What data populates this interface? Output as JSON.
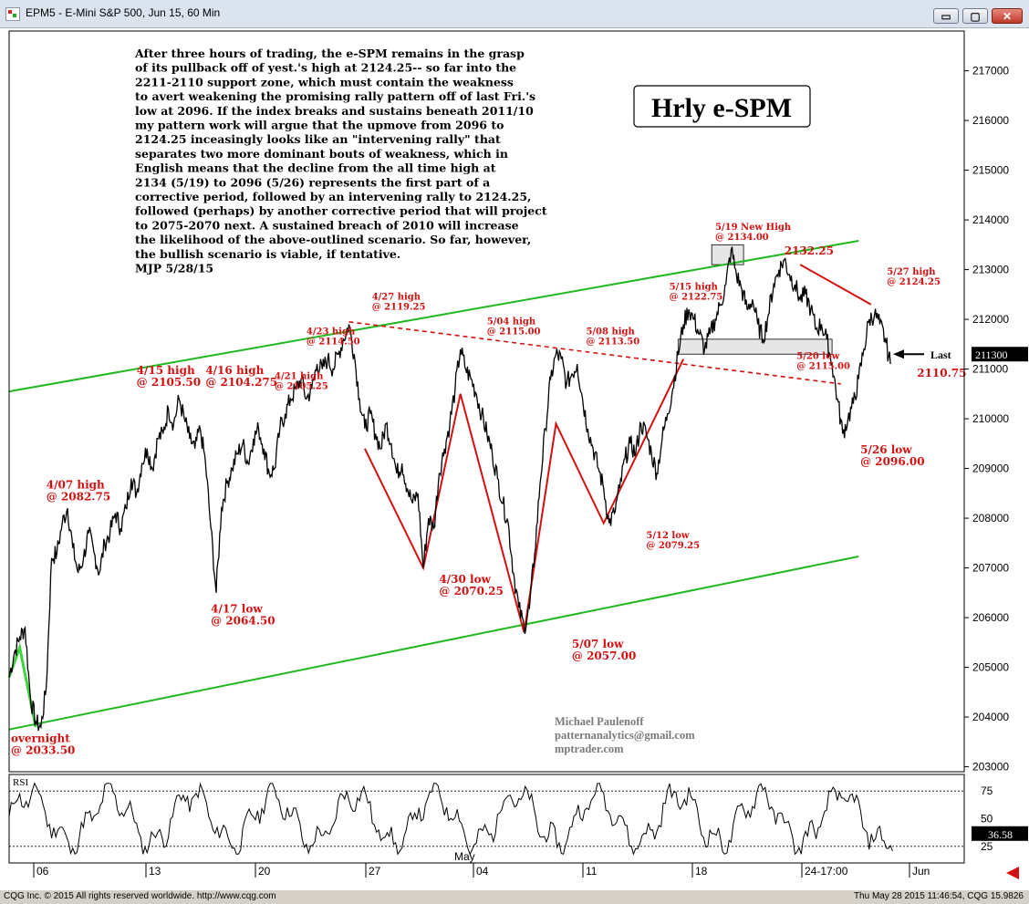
{
  "window": {
    "title": "EPM5 - E-Mini S&P 500, Jun 15, 60 Min",
    "controls": {
      "minimize": "▭",
      "maximize": "▢",
      "close": "✕"
    }
  },
  "status": {
    "left": "CQG Inc. © 2015 All rights reserved worldwide. http://www.cqg.com",
    "right": "Thu May 28 2015 11:46:54, CQG 15.9826"
  },
  "colors": {
    "price": "#000000",
    "channel": "#1fb81f",
    "annotation": "#d41010",
    "background": "#ffffff"
  },
  "chart_data": {
    "type": "line",
    "title": "Hrly e-SPM",
    "instrument": "EPM5 - E-Mini S&P 500, Jun 15, 60 Min",
    "ylim": [
      2029,
      2178
    ],
    "yticks": [
      2030,
      2040,
      2050,
      2060,
      2070,
      2080,
      2090,
      2100,
      2110,
      2120,
      2130,
      2140,
      2150,
      2160,
      2170
    ],
    "ytick_labels": [
      "203000",
      "204000",
      "205000",
      "206000",
      "207000",
      "208000",
      "209000",
      "210000",
      "211000",
      "212000",
      "213000",
      "214000",
      "215000",
      "216000",
      "217000"
    ],
    "xtick_labels": [
      "06",
      "13",
      "20",
      "27",
      "04",
      "11",
      "18",
      "24-17:00",
      "Jun"
    ],
    "month_labels": [
      "May"
    ],
    "series": [
      {
        "values": [
          [
            0,
            2048
          ],
          [
            3,
            2053
          ],
          [
            6,
            2056
          ],
          [
            9,
            2058
          ],
          [
            12,
            2044
          ],
          [
            15,
            2039
          ],
          [
            18,
            2038
          ],
          [
            21,
            2046
          ],
          [
            24,
            2072
          ],
          [
            27,
            2073
          ],
          [
            30,
            2079
          ],
          [
            33,
            2082
          ],
          [
            36,
            2074
          ],
          [
            39,
            2069
          ],
          [
            42,
            2072
          ],
          [
            45,
            2077
          ],
          [
            48,
            2073
          ],
          [
            51,
            2069
          ],
          [
            54,
            2075
          ],
          [
            57,
            2077
          ],
          [
            60,
            2081
          ],
          [
            63,
            2078
          ],
          [
            66,
            2082
          ],
          [
            69,
            2088
          ],
          [
            72,
            2085
          ],
          [
            75,
            2091
          ],
          [
            78,
            2094
          ],
          [
            81,
            2090
          ],
          [
            84,
            2096
          ],
          [
            87,
            2097
          ],
          [
            90,
            2102
          ],
          [
            93,
            2099
          ],
          [
            96,
            2104
          ],
          [
            99,
            2100
          ],
          [
            102,
            2096
          ],
          [
            105,
            2094
          ],
          [
            108,
            2098
          ],
          [
            111,
            2091
          ],
          [
            114,
            2078
          ],
          [
            117,
            2065
          ],
          [
            120,
            2082
          ],
          [
            123,
            2087
          ],
          [
            126,
            2090
          ],
          [
            129,
            2093
          ],
          [
            132,
            2095
          ],
          [
            135,
            2091
          ],
          [
            138,
            2096
          ],
          [
            141,
            2098
          ],
          [
            144,
            2094
          ],
          [
            147,
            2089
          ],
          [
            150,
            2090
          ],
          [
            153,
            2098
          ],
          [
            156,
            2101
          ],
          [
            159,
            2104
          ],
          [
            162,
            2106
          ],
          [
            165,
            2108
          ],
          [
            168,
            2104
          ],
          [
            171,
            2106
          ],
          [
            174,
            2111
          ],
          [
            177,
            2110
          ],
          [
            180,
            2112
          ],
          [
            183,
            2110
          ],
          [
            186,
            2113
          ],
          [
            189,
            2116
          ],
          [
            192,
            2119
          ],
          [
            195,
            2113
          ],
          [
            198,
            2104
          ],
          [
            201,
            2098
          ],
          [
            204,
            2101
          ],
          [
            207,
            2097
          ],
          [
            210,
            2094
          ],
          [
            213,
            2099
          ],
          [
            216,
            2095
          ],
          [
            219,
            2089
          ],
          [
            222,
            2091
          ],
          [
            225,
            2086
          ],
          [
            228,
            2083
          ],
          [
            231,
            2085
          ],
          [
            234,
            2070
          ],
          [
            237,
            2080
          ],
          [
            240,
            2078
          ],
          [
            243,
            2089
          ],
          [
            246,
            2094
          ],
          [
            249,
            2099
          ],
          [
            252,
            2106
          ],
          [
            255,
            2114
          ],
          [
            258,
            2110
          ],
          [
            261,
            2108
          ],
          [
            264,
            2105
          ],
          [
            267,
            2101
          ],
          [
            270,
            2097
          ],
          [
            273,
            2093
          ],
          [
            276,
            2088
          ],
          [
            279,
            2083
          ],
          [
            282,
            2079
          ],
          [
            285,
            2069
          ],
          [
            288,
            2062
          ],
          [
            291,
            2058
          ],
          [
            294,
            2062
          ],
          [
            297,
            2073
          ],
          [
            300,
            2087
          ],
          [
            303,
            2098
          ],
          [
            306,
            2108
          ],
          [
            309,
            2113
          ],
          [
            312,
            2112
          ],
          [
            315,
            2107
          ],
          [
            318,
            2109
          ],
          [
            321,
            2111
          ],
          [
            324,
            2104
          ],
          [
            327,
            2098
          ],
          [
            330,
            2094
          ],
          [
            333,
            2090
          ],
          [
            336,
            2086
          ],
          [
            339,
            2079
          ],
          [
            342,
            2081
          ],
          [
            345,
            2086
          ],
          [
            348,
            2092
          ],
          [
            351,
            2095
          ],
          [
            354,
            2093
          ],
          [
            357,
            2099
          ],
          [
            360,
            2097
          ],
          [
            363,
            2093
          ],
          [
            366,
            2089
          ],
          [
            369,
            2096
          ],
          [
            372,
            2101
          ],
          [
            375,
            2106
          ],
          [
            378,
            2113
          ],
          [
            381,
            2119
          ],
          [
            384,
            2122
          ],
          [
            387,
            2120
          ],
          [
            390,
            2117
          ],
          [
            393,
            2114
          ],
          [
            396,
            2117
          ],
          [
            399,
            2120
          ],
          [
            402,
            2123
          ],
          [
            405,
            2127
          ],
          [
            408,
            2134
          ],
          [
            411,
            2129
          ],
          [
            414,
            2126
          ],
          [
            417,
            2122
          ],
          [
            420,
            2124
          ],
          [
            423,
            2119
          ],
          [
            426,
            2116
          ],
          [
            429,
            2121
          ],
          [
            432,
            2127
          ],
          [
            435,
            2130
          ],
          [
            438,
            2132
          ],
          [
            441,
            2129
          ],
          [
            444,
            2127
          ],
          [
            447,
            2124
          ],
          [
            450,
            2125
          ],
          [
            453,
            2122
          ],
          [
            456,
            2118
          ],
          [
            459,
            2119
          ],
          [
            462,
            2116
          ],
          [
            465,
            2111
          ],
          [
            468,
            2104
          ],
          [
            471,
            2097
          ],
          [
            474,
            2100
          ],
          [
            477,
            2103
          ],
          [
            480,
            2108
          ],
          [
            483,
            2114
          ],
          [
            486,
            2120
          ],
          [
            489,
            2121
          ],
          [
            492,
            2119
          ],
          [
            495,
            2116
          ],
          [
            498,
            2111
          ]
        ]
      }
    ],
    "upper_channel": [
      [
        0,
        2105.5
      ],
      [
        480,
        2135.8
      ]
    ],
    "lower_channel": [
      [
        0,
        2037.5
      ],
      [
        480,
        2072.3
      ]
    ],
    "red_resistance_dashed": [
      [
        192,
        2119.5
      ],
      [
        470,
        2107
      ]
    ],
    "red_downtrend": [
      [
        447,
        2131
      ],
      [
        487,
        2123
      ]
    ],
    "red_path_w": [
      [
        201,
        2094
      ],
      [
        234,
        2070
      ],
      [
        255,
        2105
      ],
      [
        291,
        2057
      ],
      [
        309,
        2099
      ],
      [
        336,
        2079
      ],
      [
        381,
        2112
      ]
    ],
    "green_path": [
      [
        0,
        2048
      ],
      [
        6,
        2054
      ],
      [
        15,
        2038
      ]
    ],
    "zones": [
      {
        "x0": 378,
        "x1": 465,
        "y0": 2113,
        "y1": 2116
      },
      {
        "x0": 397,
        "x1": 415,
        "y0": 2131,
        "y1": 2135
      }
    ],
    "annotations": [
      {
        "lines": [
          "overnight",
          "@ 2033.50"
        ],
        "x": 1,
        "y": 2035,
        "size": 12
      },
      {
        "lines": [
          "4/07 high",
          "@ 2082.75"
        ],
        "x": 21,
        "y": 2086,
        "size": 12
      },
      {
        "lines": [
          "4/15 high",
          "@ 2105.50"
        ],
        "x": 72,
        "y": 2109,
        "size": 12
      },
      {
        "lines": [
          "4/16 high",
          "@ 2104.275"
        ],
        "x": 111,
        "y": 2109,
        "size": 12
      },
      {
        "lines": [
          "4/17 low",
          "@ 2064.50"
        ],
        "x": 114,
        "y": 2061,
        "size": 12
      },
      {
        "lines": [
          "4/21 high",
          "@ 2105.25"
        ],
        "x": 150,
        "y": 2108,
        "size": 10
      },
      {
        "lines": [
          "4/23 high",
          "@ 2114.50"
        ],
        "x": 168,
        "y": 2117,
        "size": 10
      },
      {
        "lines": [
          "4/27 high",
          "@ 2119.25"
        ],
        "x": 205,
        "y": 2124,
        "size": 10
      },
      {
        "lines": [
          "4/30 low",
          "@ 2070.25"
        ],
        "x": 243,
        "y": 2067,
        "size": 12
      },
      {
        "lines": [
          "5/04 high",
          "@ 2115.00"
        ],
        "x": 270,
        "y": 2119,
        "size": 10
      },
      {
        "lines": [
          "5/07 low",
          "@ 2057.00"
        ],
        "x": 318,
        "y": 2054,
        "size": 12
      },
      {
        "lines": [
          "5/08 high",
          "@ 2113.50"
        ],
        "x": 326,
        "y": 2117,
        "size": 10
      },
      {
        "lines": [
          "5/12 low",
          "@ 2079.25"
        ],
        "x": 360,
        "y": 2076,
        "size": 10
      },
      {
        "lines": [
          "5/15 high",
          "@ 2122.75"
        ],
        "x": 373,
        "y": 2126,
        "size": 10
      },
      {
        "lines": [
          "5/19 New High",
          "@ 2134.00"
        ],
        "x": 399,
        "y": 2138,
        "size": 10
      },
      {
        "lines": [
          "2132.25"
        ],
        "x": 438,
        "y": 2133,
        "size": 12
      },
      {
        "lines": [
          "5/20 low",
          "@ 2115.00"
        ],
        "x": 445,
        "y": 2112,
        "size": 10
      },
      {
        "lines": [
          "5/27 high",
          "@ 2124.25"
        ],
        "x": 496,
        "y": 2129,
        "size": 10
      },
      {
        "lines": [
          "5/26 low",
          "@ 2096.00"
        ],
        "x": 481,
        "y": 2093,
        "size": 12
      },
      {
        "lines": [
          "2110.75"
        ],
        "x": 513,
        "y": 2108.5,
        "size": 12
      }
    ],
    "rsi": {
      "label": "RSI",
      "levels": [
        75,
        50,
        25
      ],
      "level_labels": [
        "75",
        "50",
        "25"
      ],
      "last": "36.58",
      "ylim": [
        10,
        90
      ]
    },
    "last_price": {
      "value": 2113,
      "label": "211300",
      "arrow_label": "Last"
    },
    "credit": [
      "Michael Paulenoff",
      "patternanalytics@gmail.com",
      "mptrader.com"
    ],
    "commentary": [
      "After three hours of trading, the e-SPM remains in the grasp",
      "of its pullback off of yest.'s high at 2124.25-- so far into the",
      "2211-2110 support zone, which must contain the weakness",
      "to avert weakening the promising rally pattern off of last Fri.'s",
      "low at 2096. If the index breaks and sustains beneath 2011/10",
      "my pattern work will argue that the upmove from 2096 to",
      "2124.25 inceasingly looks like an \"intervening rally\" that",
      "separates two more dominant bouts of weakness, which in",
      "English means that the decline from the all time high at",
      "2134 (5/19) to 2096 (5/26) represents the first part of a",
      "corrective period, followed by an intervening rally to 2124.25,",
      "followed (perhaps) by another corrective period that will project",
      "to 2075-2070 next. A sustained breach of 2010 will increase",
      "the likelihood of the above-outlined scenario.  So far, however,",
      "the bullish scenario is viable, if tentative.",
      "MJP 5/28/15"
    ]
  }
}
